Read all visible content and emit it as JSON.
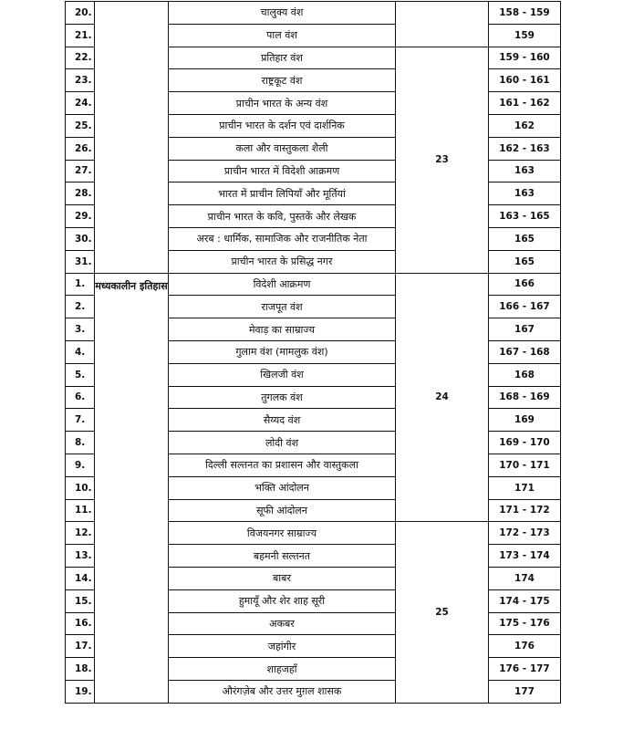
{
  "blocks": [
    {
      "section": "",
      "groups": [
        {
          "label": "",
          "rows": [
            {
              "no": "20.",
              "topic": "चालुक्य वंश",
              "pages": "158 - 159"
            },
            {
              "no": "21.",
              "topic": "पाल वंश",
              "pages": "159"
            }
          ]
        },
        {
          "label": "23",
          "rows": [
            {
              "no": "22.",
              "topic": "प्रतिहार वंश",
              "pages": "159 - 160"
            },
            {
              "no": "23.",
              "topic": "राष्ट्रकूट वंश",
              "pages": "160 - 161"
            },
            {
              "no": "24.",
              "topic": "प्राचीन भारत के अन्य वंश",
              "pages": "161 - 162"
            },
            {
              "no": "25.",
              "topic": "प्राचीन भारत के दर्शन एवं दार्शनिक",
              "pages": "162"
            },
            {
              "no": "26.",
              "topic": "कला और वास्तुकला शैली",
              "pages": "162 - 163"
            },
            {
              "no": "27.",
              "topic": "प्राचीन भारत में विदेशी आक्रमण",
              "pages": "163"
            },
            {
              "no": "28.",
              "topic": "भारत में प्राचीन लिपियाँ और मूर्तियां",
              "pages": "163"
            },
            {
              "no": "29.",
              "topic": "प्राचीन भारत के कवि, पुस्तकें और लेखक",
              "pages": "163 - 165"
            },
            {
              "no": "30.",
              "topic": "अरब : धार्मिक, सामाजिक और राजनीतिक नेता",
              "pages": "165"
            },
            {
              "no": "31.",
              "topic": "प्राचीन भारत के प्रसिद्ध नगर",
              "pages": "165"
            }
          ]
        }
      ]
    },
    {
      "section": "मध्यकालीन इतिहास",
      "groups": [
        {
          "label": "24",
          "rows": [
            {
              "no": "1.",
              "topic": "विदेशी आक्रमण",
              "pages": "166"
            },
            {
              "no": "2.",
              "topic": "राजपूत वंश",
              "pages": "166 - 167"
            },
            {
              "no": "3.",
              "topic": "मेवाड़ का साम्राज्य",
              "pages": "167"
            },
            {
              "no": "4.",
              "topic": "गुलाम वंश (मामलुक वंश)",
              "pages": "167 - 168"
            },
            {
              "no": "5.",
              "topic": "खिलजी वंश",
              "pages": "168"
            },
            {
              "no": "6.",
              "topic": "तुगलक वंश",
              "pages": "168 - 169"
            },
            {
              "no": "7.",
              "topic": "सैय्यद  वंश",
              "pages": "169"
            },
            {
              "no": "8.",
              "topic": "लोदी वंश",
              "pages": "169 - 170"
            },
            {
              "no": "9.",
              "topic": "दिल्ली सल्तनत का प्रशासन और वास्तुकला",
              "pages": "170 - 171"
            },
            {
              "no": "10.",
              "topic": "भक्ति आंदोलन",
              "pages": "171"
            },
            {
              "no": "11.",
              "topic": "सूफी आंदोलन",
              "pages": "171 - 172"
            }
          ]
        },
        {
          "label": "25",
          "rows": [
            {
              "no": "12.",
              "topic": "विजयनगर साम्राज्य",
              "pages": "172 - 173"
            },
            {
              "no": "13.",
              "topic": "बहमनी सल्तनत",
              "pages": "173 - 174"
            },
            {
              "no": "14.",
              "topic": "बाबर",
              "pages": "174"
            },
            {
              "no": "15.",
              "topic": "हुमायूँ और शेर शाह सूरी",
              "pages": "174 - 175"
            },
            {
              "no": "16.",
              "topic": "अकबर",
              "pages": "175 - 176"
            },
            {
              "no": "17.",
              "topic": "जहांगीर",
              "pages": "176"
            },
            {
              "no": "18.",
              "topic": "शाहजहाँ",
              "pages": "176 - 177"
            },
            {
              "no": "19.",
              "topic": "औरंगज़ेब और उत्तर मुग़ल शासक",
              "pages": "177"
            }
          ]
        }
      ]
    }
  ]
}
